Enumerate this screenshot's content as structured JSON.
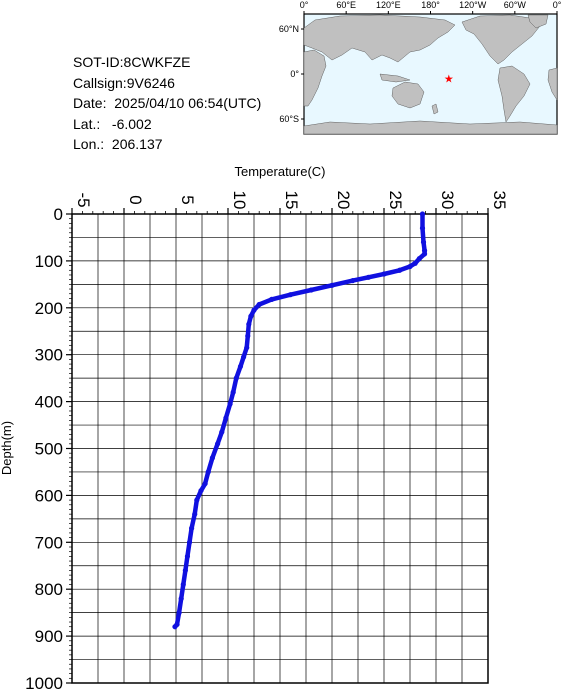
{
  "info": {
    "sot_id": "SOT-ID:8CWKFZE",
    "callsign": "Callsign:9V6246",
    "date": "Date:  2025/04/10 06:54(UTC)",
    "lat": "Lat.:   -6.002",
    "lon": "Lon.:  206.137"
  },
  "map": {
    "top_labels": [
      "0°",
      "60°E",
      "120°E",
      "180°",
      "120°W",
      "60°W",
      "0°"
    ],
    "left_labels": [
      "60°N",
      "0°",
      "60°S"
    ],
    "marker": {
      "lat": -6.002,
      "lon": 206.137,
      "color": "#ff0000"
    },
    "ocean_color": "#e8f8ff",
    "land_color": "#c0c0c0"
  },
  "chart_data": {
    "type": "line",
    "title": "",
    "xlabel": "Temperature(C)",
    "ylabel": "Depth(m)",
    "xlim": [
      -5,
      35
    ],
    "ylim": [
      0,
      1000
    ],
    "y_inverted": true,
    "x_axis_position": "top",
    "grid": true,
    "xticks": [
      "-5",
      "0",
      "5",
      "10",
      "15",
      "20",
      "25",
      "30",
      "35"
    ],
    "yticks": [
      "0",
      "100",
      "200",
      "300",
      "400",
      "500",
      "600",
      "700",
      "800",
      "900",
      "1000"
    ],
    "series_color": "#1010e0",
    "series": [
      {
        "x": [
          28.7,
          28.7,
          28.8,
          28.9,
          28.9,
          28.4,
          28.0,
          27.5,
          26.5,
          25.0,
          23.5,
          22.0,
          20.0,
          18.0,
          16.0,
          14.2,
          13.0,
          12.5,
          12.2,
          12.0,
          11.9,
          11.8,
          11.5,
          11.2,
          10.8,
          10.5,
          10.2,
          9.8,
          9.4,
          9.0,
          8.5,
          8.1,
          7.8,
          7.4,
          7.0,
          6.8,
          6.5,
          6.3,
          6.1,
          5.9,
          5.7,
          5.5,
          5.3,
          5.1,
          4.9
        ],
        "y": [
          0,
          30,
          60,
          78,
          85,
          95,
          105,
          112,
          120,
          128,
          135,
          142,
          152,
          162,
          172,
          182,
          193,
          205,
          218,
          235,
          260,
          285,
          305,
          325,
          350,
          380,
          405,
          435,
          465,
          490,
          520,
          550,
          575,
          590,
          610,
          640,
          670,
          700,
          730,
          760,
          790,
          820,
          850,
          875,
          880
        ]
      }
    ]
  }
}
